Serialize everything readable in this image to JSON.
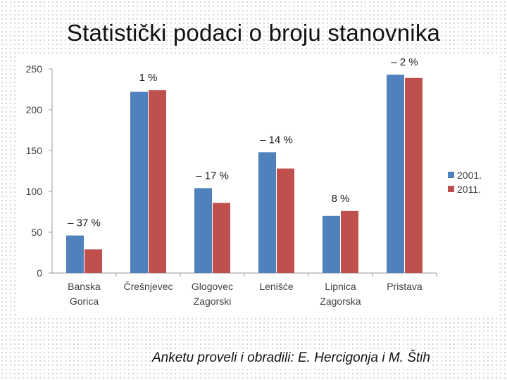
{
  "title": "Statistički podaci o broju stanovnika",
  "credit": "Anketu proveli i obradili: E. Hercigonja i M. Štih",
  "chart_data": {
    "type": "bar",
    "categories": [
      [
        "Banska",
        "Gorica"
      ],
      [
        "Črešnjevec"
      ],
      [
        "Glogovec",
        "Zagorski"
      ],
      [
        "Lenišće"
      ],
      [
        "Lipnica",
        "Zagorska"
      ],
      [
        "Pristava"
      ]
    ],
    "series": [
      {
        "name": "2001.",
        "color": "#4f81bd",
        "values": [
          46,
          222,
          104,
          148,
          70,
          243
        ]
      },
      {
        "name": "2011.",
        "color": "#c0504d",
        "values": [
          29,
          224,
          86,
          128,
          76,
          239
        ]
      }
    ],
    "change_labels": [
      "– 37 %",
      "1 %",
      "– 17 %",
      "– 14 %",
      "8 %",
      "– 2 %"
    ],
    "ylim": [
      0,
      250
    ],
    "yticks": [
      0,
      50,
      100,
      150,
      200,
      250
    ],
    "grid": false,
    "legend": "right"
  }
}
